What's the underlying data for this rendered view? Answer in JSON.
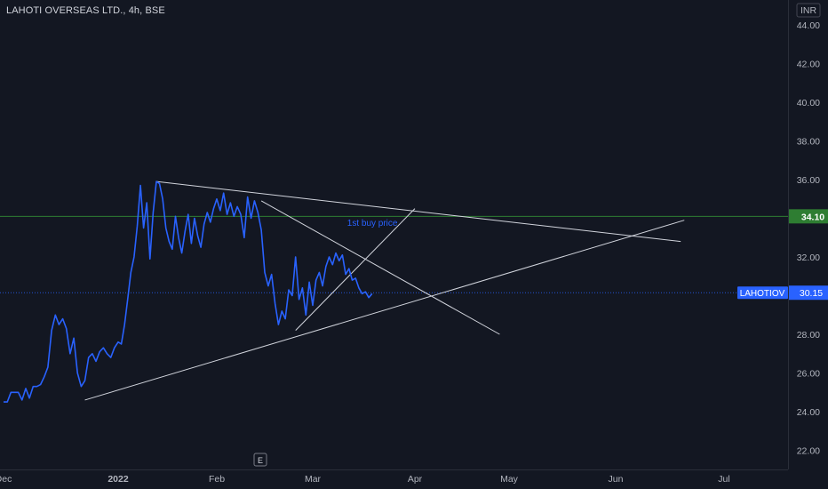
{
  "chart_title": "LAHOTI OVERSEAS LTD., 4h, BSE",
  "currency": "INR",
  "e_badge": "E",
  "colors": {
    "background": "#131722",
    "price_line": "#2962ff",
    "trend_lines": "#d1d4dc",
    "level_line": "#2e7d32",
    "current_price_line": "#2962ff",
    "axis_text": "#b2b5be"
  },
  "chart_data": {
    "type": "line",
    "title": "LAHOTI OVERSEAS LTD., 4h, BSE",
    "y_ticks": [
      "44.00",
      "42.00",
      "40.00",
      "38.00",
      "36.00",
      "34.00",
      "32.00",
      "30.00",
      "28.00",
      "26.00",
      "24.00",
      "22.00"
    ],
    "x_ticks": [
      "Dec",
      "2022",
      "Feb",
      "Mar",
      "Apr",
      "May",
      "Jun",
      "Jul"
    ],
    "ylim": [
      21.0,
      45.0
    ],
    "xlim": [
      "2021-12-01",
      "2022-07-16"
    ],
    "grid": false,
    "series": [
      {
        "name": "LAHOTIOV",
        "points": [
          [
            "2021-12-01",
            24.5
          ],
          [
            "2021-12-02",
            24.5
          ],
          [
            "2021-12-03",
            25.0
          ],
          [
            "2021-12-04",
            25.0
          ],
          [
            "2021-12-05",
            25.0
          ],
          [
            "2021-12-06",
            24.6
          ],
          [
            "2021-12-07",
            25.2
          ],
          [
            "2021-12-08",
            24.7
          ],
          [
            "2021-12-09",
            25.3
          ],
          [
            "2021-12-10",
            25.3
          ],
          [
            "2021-12-11",
            25.4
          ],
          [
            "2021-12-12",
            25.8
          ],
          [
            "2021-12-13",
            26.3
          ],
          [
            "2021-12-14",
            28.2
          ],
          [
            "2021-12-15",
            29.0
          ],
          [
            "2021-12-16",
            28.5
          ],
          [
            "2021-12-17",
            28.8
          ],
          [
            "2021-12-18",
            28.3
          ],
          [
            "2021-12-19",
            27.0
          ],
          [
            "2021-12-20",
            27.8
          ],
          [
            "2021-12-21",
            26.0
          ],
          [
            "2021-12-22",
            25.3
          ],
          [
            "2021-12-23",
            25.6
          ],
          [
            "2021-12-24",
            26.8
          ],
          [
            "2021-12-25",
            27.0
          ],
          [
            "2021-12-26",
            26.6
          ],
          [
            "2021-12-27",
            27.1
          ],
          [
            "2021-12-28",
            27.3
          ],
          [
            "2021-12-29",
            27.0
          ],
          [
            "2021-12-30",
            26.8
          ],
          [
            "2021-12-31",
            27.3
          ],
          [
            "2022-01-01",
            27.6
          ],
          [
            "2022-01-02",
            27.5
          ],
          [
            "2022-01-03",
            28.5
          ],
          [
            "2022-01-04",
            29.8
          ],
          [
            "2022-01-05",
            31.2
          ],
          [
            "2022-01-06",
            32.0
          ],
          [
            "2022-01-07",
            33.6
          ],
          [
            "2022-01-08",
            35.7
          ],
          [
            "2022-01-09",
            33.5
          ],
          [
            "2022-01-10",
            34.8
          ],
          [
            "2022-01-11",
            31.9
          ],
          [
            "2022-01-12",
            34.3
          ],
          [
            "2022-01-13",
            35.9
          ],
          [
            "2022-01-14",
            35.8
          ],
          [
            "2022-01-15",
            35.0
          ],
          [
            "2022-01-16",
            33.5
          ],
          [
            "2022-01-17",
            32.8
          ],
          [
            "2022-01-18",
            32.4
          ],
          [
            "2022-01-19",
            34.1
          ],
          [
            "2022-01-20",
            33.0
          ],
          [
            "2022-01-21",
            32.2
          ],
          [
            "2022-01-22",
            33.3
          ],
          [
            "2022-01-23",
            34.2
          ],
          [
            "2022-01-24",
            32.7
          ],
          [
            "2022-01-25",
            34.0
          ],
          [
            "2022-01-26",
            33.1
          ],
          [
            "2022-01-27",
            32.5
          ],
          [
            "2022-01-28",
            33.7
          ],
          [
            "2022-01-29",
            34.3
          ],
          [
            "2022-01-30",
            33.8
          ],
          [
            "2022-01-31",
            34.5
          ],
          [
            "2022-02-01",
            35.0
          ],
          [
            "2022-02-02",
            34.4
          ],
          [
            "2022-02-03",
            35.3
          ],
          [
            "2022-02-04",
            34.2
          ],
          [
            "2022-02-05",
            34.8
          ],
          [
            "2022-02-06",
            34.1
          ],
          [
            "2022-02-07",
            34.6
          ],
          [
            "2022-02-08",
            34.2
          ],
          [
            "2022-02-09",
            33.0
          ],
          [
            "2022-02-10",
            35.1
          ],
          [
            "2022-02-11",
            34.0
          ],
          [
            "2022-02-12",
            34.9
          ],
          [
            "2022-02-13",
            34.3
          ],
          [
            "2022-02-14",
            33.4
          ],
          [
            "2022-02-15",
            31.2
          ],
          [
            "2022-02-16",
            30.5
          ],
          [
            "2022-02-17",
            31.1
          ],
          [
            "2022-02-18",
            29.6
          ],
          [
            "2022-02-19",
            28.5
          ],
          [
            "2022-02-20",
            29.2
          ],
          [
            "2022-02-21",
            28.8
          ],
          [
            "2022-02-22",
            30.3
          ],
          [
            "2022-02-23",
            30.0
          ],
          [
            "2022-02-24",
            32.0
          ],
          [
            "2022-02-25",
            29.8
          ],
          [
            "2022-02-26",
            30.4
          ],
          [
            "2022-02-27",
            29.0
          ],
          [
            "2022-02-28",
            30.7
          ],
          [
            "2022-03-01",
            29.5
          ],
          [
            "2022-03-02",
            30.8
          ],
          [
            "2022-03-03",
            31.2
          ],
          [
            "2022-03-04",
            30.5
          ],
          [
            "2022-03-05",
            31.5
          ],
          [
            "2022-03-06",
            32.0
          ],
          [
            "2022-03-07",
            31.6
          ],
          [
            "2022-03-08",
            32.2
          ],
          [
            "2022-03-09",
            31.8
          ],
          [
            "2022-03-10",
            32.1
          ],
          [
            "2022-03-11",
            31.1
          ],
          [
            "2022-03-12",
            31.4
          ],
          [
            "2022-03-13",
            30.8
          ],
          [
            "2022-03-14",
            30.9
          ],
          [
            "2022-03-15",
            30.4
          ],
          [
            "2022-03-16",
            30.1
          ],
          [
            "2022-03-17",
            30.2
          ],
          [
            "2022-03-18",
            29.9
          ],
          [
            "2022-03-19",
            30.1
          ]
        ]
      }
    ],
    "horizontal_levels": [
      34.1
    ],
    "price_labels": [
      {
        "name": "LAHOTIOV",
        "value": "30.15"
      },
      {
        "value": "34.10"
      }
    ],
    "trend_lines": [
      {
        "from": [
          "2022-01-13",
          35.9
        ],
        "to": [
          "2022-06-19",
          32.8
        ]
      },
      {
        "from": [
          "2021-12-23",
          24.6
        ],
        "to": [
          "2022-06-20",
          33.9
        ]
      },
      {
        "from": [
          "2022-02-14",
          34.9
        ],
        "to": [
          "2022-04-28",
          28.0
        ]
      },
      {
        "from": [
          "2022-02-24",
          28.2
        ],
        "to": [
          "2022-04-01",
          34.5
        ]
      }
    ],
    "annotations": [
      {
        "text": "1st buy price",
        "at": [
          "2022-03-19",
          33.8
        ]
      }
    ]
  }
}
